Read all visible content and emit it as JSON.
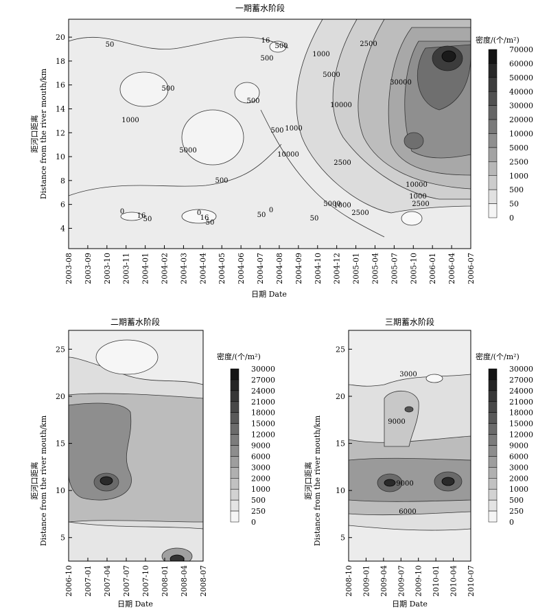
{
  "chart_data": [
    {
      "type": "heatmap",
      "subtype": "filled-contour",
      "title": "一期蓄水阶段",
      "xlabel": "日期 Date",
      "ylabel_cn": "距河口距离",
      "ylabel_en": "Distance from the river mouth/km",
      "x_tick_labels": [
        "2003-08",
        "2003-09",
        "2003-10",
        "2003-11",
        "2004-01",
        "2004-02",
        "2004-03",
        "2004-04",
        "2004-05",
        "2004-06",
        "2004-07",
        "2004-08",
        "2004-09",
        "2004-10",
        "2004-12",
        "2005-01",
        "2005-04",
        "2005-07",
        "2005-10",
        "2006-01",
        "2006-04",
        "2006-07"
      ],
      "y_ticks": [
        4,
        6,
        8,
        10,
        12,
        14,
        16,
        18,
        20
      ],
      "ylim": [
        2.3,
        21.5
      ],
      "legend_title": "密度/(个/m²)",
      "legend_levels": [
        70000,
        60000,
        50000,
        40000,
        30000,
        20000,
        10000,
        5000,
        2500,
        1000,
        500,
        50,
        0
      ],
      "legend_labels": [
        "70000",
        "60000",
        "50000",
        "40000",
        "30000",
        "20000",
        "10000",
        "5000",
        "2500",
        "1000",
        "500",
        "50",
        "0"
      ],
      "contour_labels": [
        "50",
        "500",
        "1000",
        "2500",
        "5000",
        "10000",
        "30000",
        "500",
        "500",
        "1000",
        "500",
        "1000",
        "2500",
        "5000",
        "10000",
        "500",
        "1000",
        "2500",
        "50",
        "16",
        "500",
        "0",
        "16",
        "50",
        "0",
        "50",
        "0",
        "16",
        "50",
        "10000",
        "2500",
        "1000",
        "5000"
      ],
      "grid": false
    },
    {
      "type": "heatmap",
      "subtype": "filled-contour",
      "title": "二期蓄水阶段",
      "xlabel": "日期 Date",
      "ylabel_cn": "距河口距离",
      "ylabel_en": "Distance from the river mouth/km",
      "x_tick_labels": [
        "2006-10",
        "2007-01",
        "2007-04",
        "2007-07",
        "2007-10",
        "2008-01",
        "2008-04",
        "2008-07"
      ],
      "y_ticks": [
        5,
        10,
        15,
        20,
        25
      ],
      "ylim": [
        2.5,
        27.0
      ],
      "legend_title": "密度/(个/m²)",
      "legend_levels": [
        30000,
        27000,
        24000,
        21000,
        18000,
        15000,
        12000,
        9000,
        6000,
        3000,
        2000,
        1000,
        500,
        250,
        0
      ],
      "legend_labels": [
        "30000",
        "27000",
        "24000",
        "21000",
        "18000",
        "15000",
        "12000",
        "9000",
        "6000",
        "3000",
        "2000",
        "1000",
        "500",
        "250",
        "0"
      ],
      "contour_labels": [],
      "grid": false
    },
    {
      "type": "heatmap",
      "subtype": "filled-contour",
      "title": "三期蓄水阶段",
      "xlabel": "日期 Date",
      "ylabel_cn": "距河口距离",
      "ylabel_en": "Distance from the river mouth/km",
      "x_tick_labels": [
        "2008-10",
        "2009-01",
        "2009-04",
        "2009-07",
        "2009-10",
        "2010-01",
        "2010-04",
        "2010-07"
      ],
      "y_ticks": [
        5,
        10,
        15,
        20,
        25
      ],
      "ylim": [
        2.5,
        27.0
      ],
      "legend_title": "密度/(个/m²)",
      "legend_levels": [
        30000,
        27000,
        24000,
        21000,
        18000,
        15000,
        12000,
        9000,
        6000,
        3000,
        2000,
        1000,
        500,
        250,
        0
      ],
      "legend_labels": [
        "30000",
        "27000",
        "24000",
        "21000",
        "18000",
        "15000",
        "12000",
        "9000",
        "6000",
        "3000",
        "2000",
        "1000",
        "500",
        "250",
        "0"
      ],
      "contour_labels": [
        "3000",
        "9000",
        "9000",
        "6000"
      ],
      "grid": false
    }
  ]
}
